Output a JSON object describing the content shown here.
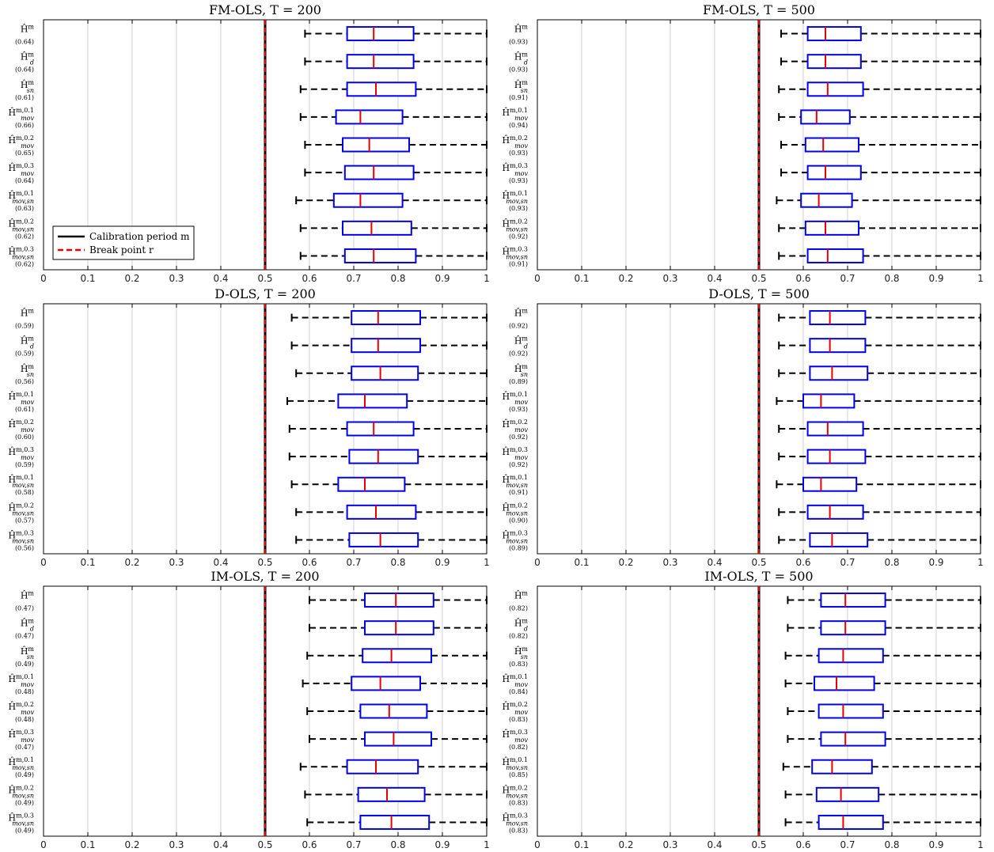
{
  "figure": {
    "background": "#ffffff"
  },
  "style": {
    "box_color": "#0000e6",
    "median_color": "#e60000",
    "whisker_color": "#000000",
    "grid_color": "#d0d0d0",
    "break_color": "#e60000",
    "calib_color": "#000000"
  },
  "legend": {
    "items": [
      {
        "label": "Calibration period m",
        "style": "solid",
        "color": "#000000"
      },
      {
        "label": "Break point r",
        "style": "dashed",
        "color": "#e60000"
      }
    ]
  },
  "row_labels": [
    {
      "main": "Ĥ",
      "sup": "m",
      "sub": ""
    },
    {
      "main": "Ĥ",
      "sup": "m",
      "sub": "d"
    },
    {
      "main": "Ĥ",
      "sup": "m",
      "sub": "sn"
    },
    {
      "main": "Ĥ",
      "sup": "m,0.1",
      "sub": "mov"
    },
    {
      "main": "Ĥ",
      "sup": "m,0.2",
      "sub": "mov"
    },
    {
      "main": "Ĥ",
      "sup": "m,0.3",
      "sub": "mov"
    },
    {
      "main": "Ĥ",
      "sup": "m,0.1",
      "sub": "mov,sn"
    },
    {
      "main": "Ĥ",
      "sup": "m,0.2",
      "sub": "mov,sn"
    },
    {
      "main": "Ĥ",
      "sup": "m,0.3",
      "sub": "mov,sn"
    }
  ],
  "chart_data": [
    {
      "type": "box",
      "title": "FM-OLS, T = 200",
      "xlim": [
        0,
        1
      ],
      "xticks": [
        "0",
        "0.1",
        "0.2",
        "0.3",
        "0.4",
        "0.5",
        "0.6",
        "0.7",
        "0.8",
        "0.9",
        "1"
      ],
      "break_point": 0.5,
      "show_legend": true,
      "rows": [
        {
          "frac": "(0.64)",
          "wlo": 0.59,
          "q1": 0.685,
          "med": 0.745,
          "q3": 0.835,
          "whi": 1.0
        },
        {
          "frac": "(0.64)",
          "wlo": 0.59,
          "q1": 0.685,
          "med": 0.745,
          "q3": 0.835,
          "whi": 1.0
        },
        {
          "frac": "(0.61)",
          "wlo": 0.58,
          "q1": 0.685,
          "med": 0.75,
          "q3": 0.84,
          "whi": 1.0
        },
        {
          "frac": "(0.66)",
          "wlo": 0.58,
          "q1": 0.66,
          "med": 0.715,
          "q3": 0.81,
          "whi": 1.0
        },
        {
          "frac": "(0.65)",
          "wlo": 0.59,
          "q1": 0.675,
          "med": 0.735,
          "q3": 0.825,
          "whi": 1.0
        },
        {
          "frac": "(0.64)",
          "wlo": 0.59,
          "q1": 0.68,
          "med": 0.745,
          "q3": 0.835,
          "whi": 1.0
        },
        {
          "frac": "(0.63)",
          "wlo": 0.57,
          "q1": 0.655,
          "med": 0.715,
          "q3": 0.81,
          "whi": 1.0
        },
        {
          "frac": "(0.62)",
          "wlo": 0.58,
          "q1": 0.675,
          "med": 0.74,
          "q3": 0.83,
          "whi": 1.0
        },
        {
          "frac": "(0.62)",
          "wlo": 0.58,
          "q1": 0.68,
          "med": 0.745,
          "q3": 0.84,
          "whi": 1.0
        }
      ]
    },
    {
      "type": "box",
      "title": "FM-OLS, T = 500",
      "xlim": [
        0,
        1
      ],
      "xticks": [
        "0",
        "0.1",
        "0.2",
        "0.3",
        "0.4",
        "0.5",
        "0.6",
        "0.7",
        "0.8",
        "0.9",
        "1"
      ],
      "break_point": 0.5,
      "show_legend": false,
      "rows": [
        {
          "frac": "(0.93)",
          "wlo": 0.55,
          "q1": 0.61,
          "med": 0.65,
          "q3": 0.73,
          "whi": 1.0
        },
        {
          "frac": "(0.93)",
          "wlo": 0.55,
          "q1": 0.61,
          "med": 0.65,
          "q3": 0.73,
          "whi": 1.0
        },
        {
          "frac": "(0.91)",
          "wlo": 0.545,
          "q1": 0.61,
          "med": 0.655,
          "q3": 0.735,
          "whi": 1.0
        },
        {
          "frac": "(0.94)",
          "wlo": 0.545,
          "q1": 0.595,
          "med": 0.63,
          "q3": 0.705,
          "whi": 1.0
        },
        {
          "frac": "(0.93)",
          "wlo": 0.55,
          "q1": 0.605,
          "med": 0.645,
          "q3": 0.725,
          "whi": 1.0
        },
        {
          "frac": "(0.93)",
          "wlo": 0.55,
          "q1": 0.61,
          "med": 0.65,
          "q3": 0.73,
          "whi": 1.0
        },
        {
          "frac": "(0.93)",
          "wlo": 0.54,
          "q1": 0.595,
          "med": 0.635,
          "q3": 0.71,
          "whi": 1.0
        },
        {
          "frac": "(0.92)",
          "wlo": 0.545,
          "q1": 0.605,
          "med": 0.65,
          "q3": 0.725,
          "whi": 1.0
        },
        {
          "frac": "(0.91)",
          "wlo": 0.545,
          "q1": 0.61,
          "med": 0.655,
          "q3": 0.735,
          "whi": 1.0
        }
      ]
    },
    {
      "type": "box",
      "title": "D-OLS, T = 200",
      "xlim": [
        0,
        1
      ],
      "xticks": [
        "0",
        "0.1",
        "0.2",
        "0.3",
        "0.4",
        "0.5",
        "0.6",
        "0.7",
        "0.8",
        "0.9",
        "1"
      ],
      "break_point": 0.5,
      "show_legend": false,
      "rows": [
        {
          "frac": "(0.59)",
          "wlo": 0.56,
          "q1": 0.695,
          "med": 0.755,
          "q3": 0.85,
          "whi": 1.0
        },
        {
          "frac": "(0.59)",
          "wlo": 0.56,
          "q1": 0.695,
          "med": 0.755,
          "q3": 0.85,
          "whi": 1.0
        },
        {
          "frac": "(0.56)",
          "wlo": 0.57,
          "q1": 0.695,
          "med": 0.76,
          "q3": 0.845,
          "whi": 1.0
        },
        {
          "frac": "(0.61)",
          "wlo": 0.55,
          "q1": 0.665,
          "med": 0.725,
          "q3": 0.82,
          "whi": 1.0
        },
        {
          "frac": "(0.60)",
          "wlo": 0.555,
          "q1": 0.685,
          "med": 0.745,
          "q3": 0.835,
          "whi": 1.0
        },
        {
          "frac": "(0.59)",
          "wlo": 0.555,
          "q1": 0.69,
          "med": 0.755,
          "q3": 0.845,
          "whi": 1.0
        },
        {
          "frac": "(0.58)",
          "wlo": 0.56,
          "q1": 0.665,
          "med": 0.725,
          "q3": 0.815,
          "whi": 1.0
        },
        {
          "frac": "(0.57)",
          "wlo": 0.57,
          "q1": 0.685,
          "med": 0.75,
          "q3": 0.84,
          "whi": 1.0
        },
        {
          "frac": "(0.56)",
          "wlo": 0.57,
          "q1": 0.69,
          "med": 0.76,
          "q3": 0.845,
          "whi": 1.0
        }
      ]
    },
    {
      "type": "box",
      "title": "D-OLS, T = 500",
      "xlim": [
        0,
        1
      ],
      "xticks": [
        "0",
        "0.1",
        "0.2",
        "0.3",
        "0.4",
        "0.5",
        "0.6",
        "0.7",
        "0.8",
        "0.9",
        "1"
      ],
      "break_point": 0.5,
      "show_legend": false,
      "rows": [
        {
          "frac": "(0.92)",
          "wlo": 0.545,
          "q1": 0.615,
          "med": 0.66,
          "q3": 0.74,
          "whi": 1.0
        },
        {
          "frac": "(0.92)",
          "wlo": 0.545,
          "q1": 0.615,
          "med": 0.66,
          "q3": 0.74,
          "whi": 1.0
        },
        {
          "frac": "(0.89)",
          "wlo": 0.545,
          "q1": 0.615,
          "med": 0.665,
          "q3": 0.745,
          "whi": 1.0
        },
        {
          "frac": "(0.93)",
          "wlo": 0.54,
          "q1": 0.6,
          "med": 0.64,
          "q3": 0.715,
          "whi": 1.0
        },
        {
          "frac": "(0.92)",
          "wlo": 0.545,
          "q1": 0.61,
          "med": 0.655,
          "q3": 0.735,
          "whi": 1.0
        },
        {
          "frac": "(0.92)",
          "wlo": 0.545,
          "q1": 0.61,
          "med": 0.66,
          "q3": 0.74,
          "whi": 1.0
        },
        {
          "frac": "(0.91)",
          "wlo": 0.54,
          "q1": 0.6,
          "med": 0.64,
          "q3": 0.72,
          "whi": 1.0
        },
        {
          "frac": "(0.90)",
          "wlo": 0.545,
          "q1": 0.61,
          "med": 0.66,
          "q3": 0.735,
          "whi": 1.0
        },
        {
          "frac": "(0.89)",
          "wlo": 0.545,
          "q1": 0.615,
          "med": 0.665,
          "q3": 0.745,
          "whi": 1.0
        }
      ]
    },
    {
      "type": "box",
      "title": "IM-OLS, T = 200",
      "xlim": [
        0,
        1
      ],
      "xticks": [
        "0",
        "0.1",
        "0.2",
        "0.3",
        "0.4",
        "0.5",
        "0.6",
        "0.7",
        "0.8",
        "0.9",
        "1"
      ],
      "break_point": 0.5,
      "show_legend": false,
      "rows": [
        {
          "frac": "(0.47)",
          "wlo": 0.6,
          "q1": 0.725,
          "med": 0.795,
          "q3": 0.88,
          "whi": 1.0
        },
        {
          "frac": "(0.47)",
          "wlo": 0.6,
          "q1": 0.725,
          "med": 0.795,
          "q3": 0.88,
          "whi": 1.0
        },
        {
          "frac": "(0.49)",
          "wlo": 0.595,
          "q1": 0.72,
          "med": 0.785,
          "q3": 0.875,
          "whi": 1.0
        },
        {
          "frac": "(0.48)",
          "wlo": 0.585,
          "q1": 0.695,
          "med": 0.76,
          "q3": 0.85,
          "whi": 1.0
        },
        {
          "frac": "(0.48)",
          "wlo": 0.595,
          "q1": 0.715,
          "med": 0.78,
          "q3": 0.865,
          "whi": 1.0
        },
        {
          "frac": "(0.47)",
          "wlo": 0.6,
          "q1": 0.725,
          "med": 0.79,
          "q3": 0.875,
          "whi": 1.0
        },
        {
          "frac": "(0.49)",
          "wlo": 0.58,
          "q1": 0.685,
          "med": 0.75,
          "q3": 0.845,
          "whi": 1.0
        },
        {
          "frac": "(0.49)",
          "wlo": 0.59,
          "q1": 0.71,
          "med": 0.775,
          "q3": 0.86,
          "whi": 1.0
        },
        {
          "frac": "(0.49)",
          "wlo": 0.595,
          "q1": 0.715,
          "med": 0.785,
          "q3": 0.87,
          "whi": 1.0
        }
      ]
    },
    {
      "type": "box",
      "title": "IM-OLS, T = 500",
      "xlim": [
        0,
        1
      ],
      "xticks": [
        "0",
        "0.1",
        "0.2",
        "0.3",
        "0.4",
        "0.5",
        "0.6",
        "0.7",
        "0.8",
        "0.9",
        "1"
      ],
      "break_point": 0.5,
      "show_legend": false,
      "rows": [
        {
          "frac": "(0.82)",
          "wlo": 0.565,
          "q1": 0.64,
          "med": 0.695,
          "q3": 0.785,
          "whi": 1.0
        },
        {
          "frac": "(0.82)",
          "wlo": 0.565,
          "q1": 0.64,
          "med": 0.695,
          "q3": 0.785,
          "whi": 1.0
        },
        {
          "frac": "(0.83)",
          "wlo": 0.56,
          "q1": 0.635,
          "med": 0.69,
          "q3": 0.78,
          "whi": 1.0
        },
        {
          "frac": "(0.84)",
          "wlo": 0.56,
          "q1": 0.625,
          "med": 0.675,
          "q3": 0.76,
          "whi": 1.0
        },
        {
          "frac": "(0.83)",
          "wlo": 0.565,
          "q1": 0.635,
          "med": 0.69,
          "q3": 0.78,
          "whi": 1.0
        },
        {
          "frac": "(0.82)",
          "wlo": 0.565,
          "q1": 0.64,
          "med": 0.695,
          "q3": 0.785,
          "whi": 1.0
        },
        {
          "frac": "(0.85)",
          "wlo": 0.555,
          "q1": 0.62,
          "med": 0.665,
          "q3": 0.755,
          "whi": 1.0
        },
        {
          "frac": "(0.83)",
          "wlo": 0.56,
          "q1": 0.63,
          "med": 0.685,
          "q3": 0.77,
          "whi": 1.0
        },
        {
          "frac": "(0.83)",
          "wlo": 0.56,
          "q1": 0.635,
          "med": 0.69,
          "q3": 0.78,
          "whi": 1.0
        }
      ]
    }
  ]
}
